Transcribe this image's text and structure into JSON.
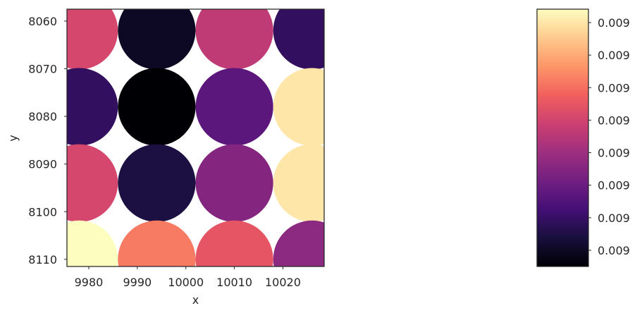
{
  "chart_data": {
    "type": "scatter",
    "title": "",
    "xlabel": "x",
    "ylabel": "y",
    "xlim": [
      9975.5,
      10028.5
    ],
    "ylim": [
      8057.5,
      8111.5
    ],
    "y_inverted": true,
    "xticks": [
      9980,
      9990,
      10000,
      10010,
      10020
    ],
    "xtick_labels": [
      "9980",
      "9990",
      "10000",
      "10010",
      "10020"
    ],
    "yticks": [
      8060,
      8070,
      8080,
      8090,
      8100,
      8110
    ],
    "ytick_labels": [
      "8060",
      "8070",
      "8080",
      "8090",
      "8100",
      "8110"
    ],
    "colormap": "magma",
    "marker_diameter_data_units": 16,
    "points": [
      {
        "x": 9978,
        "y": 8062,
        "c": 0.58
      },
      {
        "x": 9994,
        "y": 8062,
        "c": 0.06
      },
      {
        "x": 10010,
        "y": 8062,
        "c": 0.52
      },
      {
        "x": 10026,
        "y": 8062,
        "c": 0.18
      },
      {
        "x": 9978,
        "y": 8078,
        "c": 0.18
      },
      {
        "x": 9994,
        "y": 8078,
        "c": 0.0
      },
      {
        "x": 10010,
        "y": 8078,
        "c": 0.28
      },
      {
        "x": 10026,
        "y": 8078,
        "c": 0.95
      },
      {
        "x": 9978,
        "y": 8094,
        "c": 0.58
      },
      {
        "x": 9994,
        "y": 8094,
        "c": 0.12
      },
      {
        "x": 10010,
        "y": 8094,
        "c": 0.38
      },
      {
        "x": 10026,
        "y": 8094,
        "c": 0.95
      },
      {
        "x": 9978,
        "y": 8110,
        "c": 1.0
      },
      {
        "x": 9994,
        "y": 8110,
        "c": 0.72
      },
      {
        "x": 10010,
        "y": 8110,
        "c": 0.63
      },
      {
        "x": 10026,
        "y": 8110,
        "c": 0.4
      }
    ],
    "colorbar": {
      "tick_labels": [
        "0.009",
        "0.009",
        "0.009",
        "0.009",
        "0.009",
        "0.009",
        "0.009",
        "0.009"
      ]
    },
    "colormap_stops": [
      "#000004",
      "#180f3d",
      "#440f76",
      "#721f81",
      "#9e2f7f",
      "#cd4071",
      "#f1605d",
      "#fd9668",
      "#feca8d",
      "#fcfdbf"
    ]
  }
}
